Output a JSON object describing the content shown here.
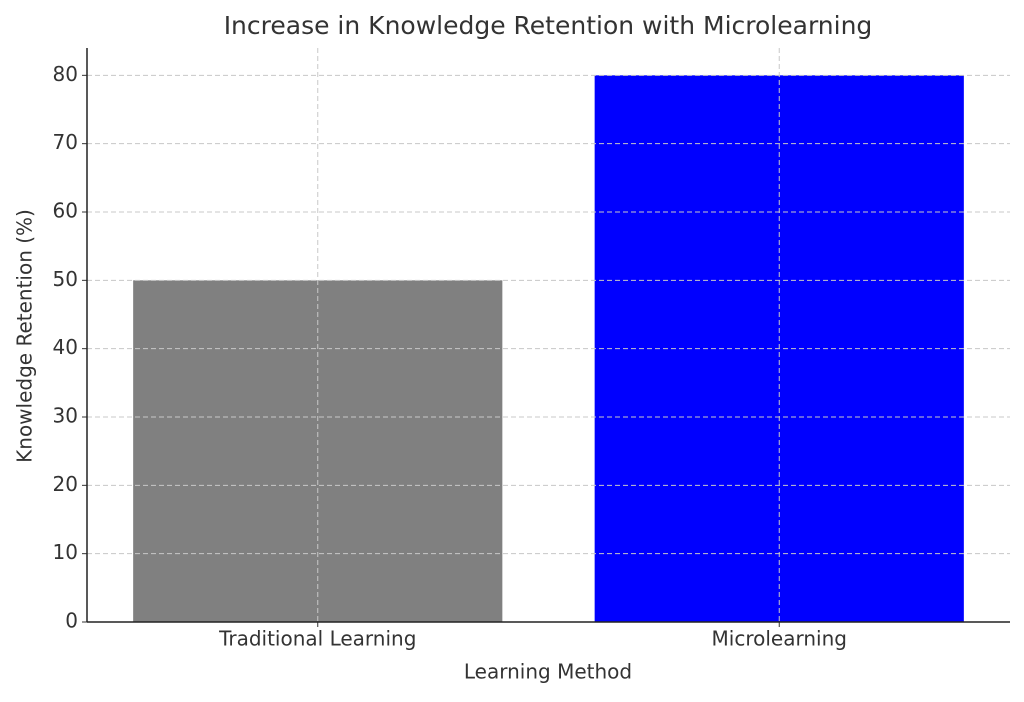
{
  "chart_data": {
    "type": "bar",
    "title": "Increase in Knowledge Retention with Microlearning",
    "x_label": "Learning Method",
    "y_label": "Knowledge Retention (%)",
    "categories": [
      "Traditional Learning",
      "Microlearning"
    ],
    "values": [
      50,
      80
    ],
    "colors": [
      "#808080",
      "#0000ff"
    ],
    "ylim": [
      0,
      84
    ],
    "yticks": [
      0,
      10,
      20,
      30,
      40,
      50,
      60,
      70,
      80
    ],
    "grid": true
  }
}
